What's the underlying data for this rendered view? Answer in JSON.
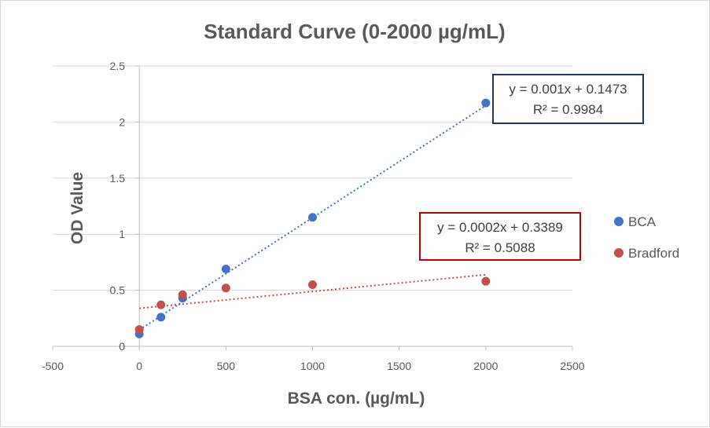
{
  "chart_data": {
    "type": "scatter",
    "title": "Standard Curve (0-2000 µg/mL)",
    "xlabel": "BSA con. (µg/mL)",
    "ylabel": "OD Value",
    "xlim": [
      -500,
      2500
    ],
    "ylim": [
      0,
      2.5
    ],
    "x_ticks": [
      "-500",
      "0",
      "500",
      "1000",
      "1500",
      "2000",
      "2500"
    ],
    "y_ticks": [
      "0",
      "0.5",
      "1",
      "1.5",
      "2",
      "2.5"
    ],
    "grid": "horizontal",
    "legend_position": "right",
    "series": [
      {
        "name": "BCA",
        "color": "#4472c4",
        "x": [
          0,
          125,
          250,
          500,
          1000,
          2000
        ],
        "y": [
          0.11,
          0.26,
          0.43,
          0.69,
          1.15,
          2.17
        ],
        "trendline": {
          "slope": 0.001,
          "intercept": 0.1473,
          "x_range": [
            0,
            2000
          ]
        },
        "equation": "y = 0.001x + 0.1473",
        "r2": "R² = 0.9984",
        "label_border": "#1f3864"
      },
      {
        "name": "Bradford",
        "color": "#c0504d",
        "x": [
          0,
          125,
          250,
          500,
          1000,
          2000
        ],
        "y": [
          0.15,
          0.37,
          0.46,
          0.52,
          0.55,
          0.58
        ],
        "trendline": {
          "slope": 0.00015,
          "intercept": 0.3389,
          "x_range": [
            0,
            2000
          ]
        },
        "equation": "y = 0.0002x + 0.3389",
        "r2": "R² = 0.5088",
        "label_border": "#c00000"
      }
    ]
  }
}
